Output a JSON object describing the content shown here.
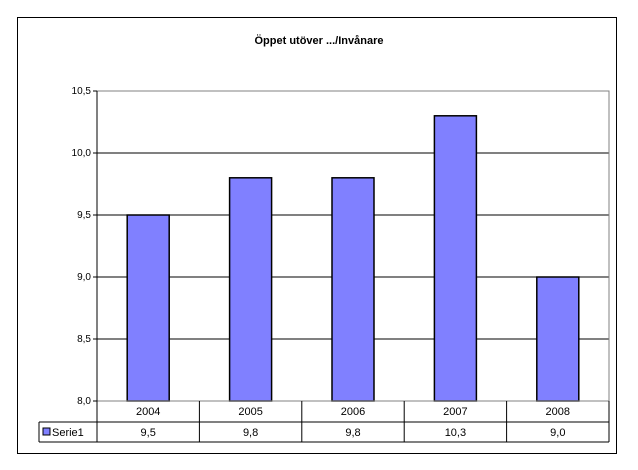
{
  "chart_data": {
    "type": "bar",
    "title": "Öppet utöver .../Invånare",
    "categories": [
      "2004",
      "2005",
      "2006",
      "2007",
      "2008"
    ],
    "series": [
      {
        "name": "Serie1",
        "values": [
          9.5,
          9.8,
          9.8,
          10.3,
          9.0
        ],
        "value_labels": [
          "9,5",
          "9,8",
          "9,8",
          "10,3",
          "9,0"
        ],
        "color": "#8080ff"
      }
    ],
    "ylim": [
      8.0,
      10.5
    ],
    "yticks": [
      8.0,
      8.5,
      9.0,
      9.5,
      10.0,
      10.5
    ],
    "ytick_labels": [
      "8,0",
      "8,5",
      "9,0",
      "9,5",
      "10,0",
      "10,5"
    ],
    "grid": true,
    "plot_background": "#ffffff",
    "legend": "data-table"
  }
}
